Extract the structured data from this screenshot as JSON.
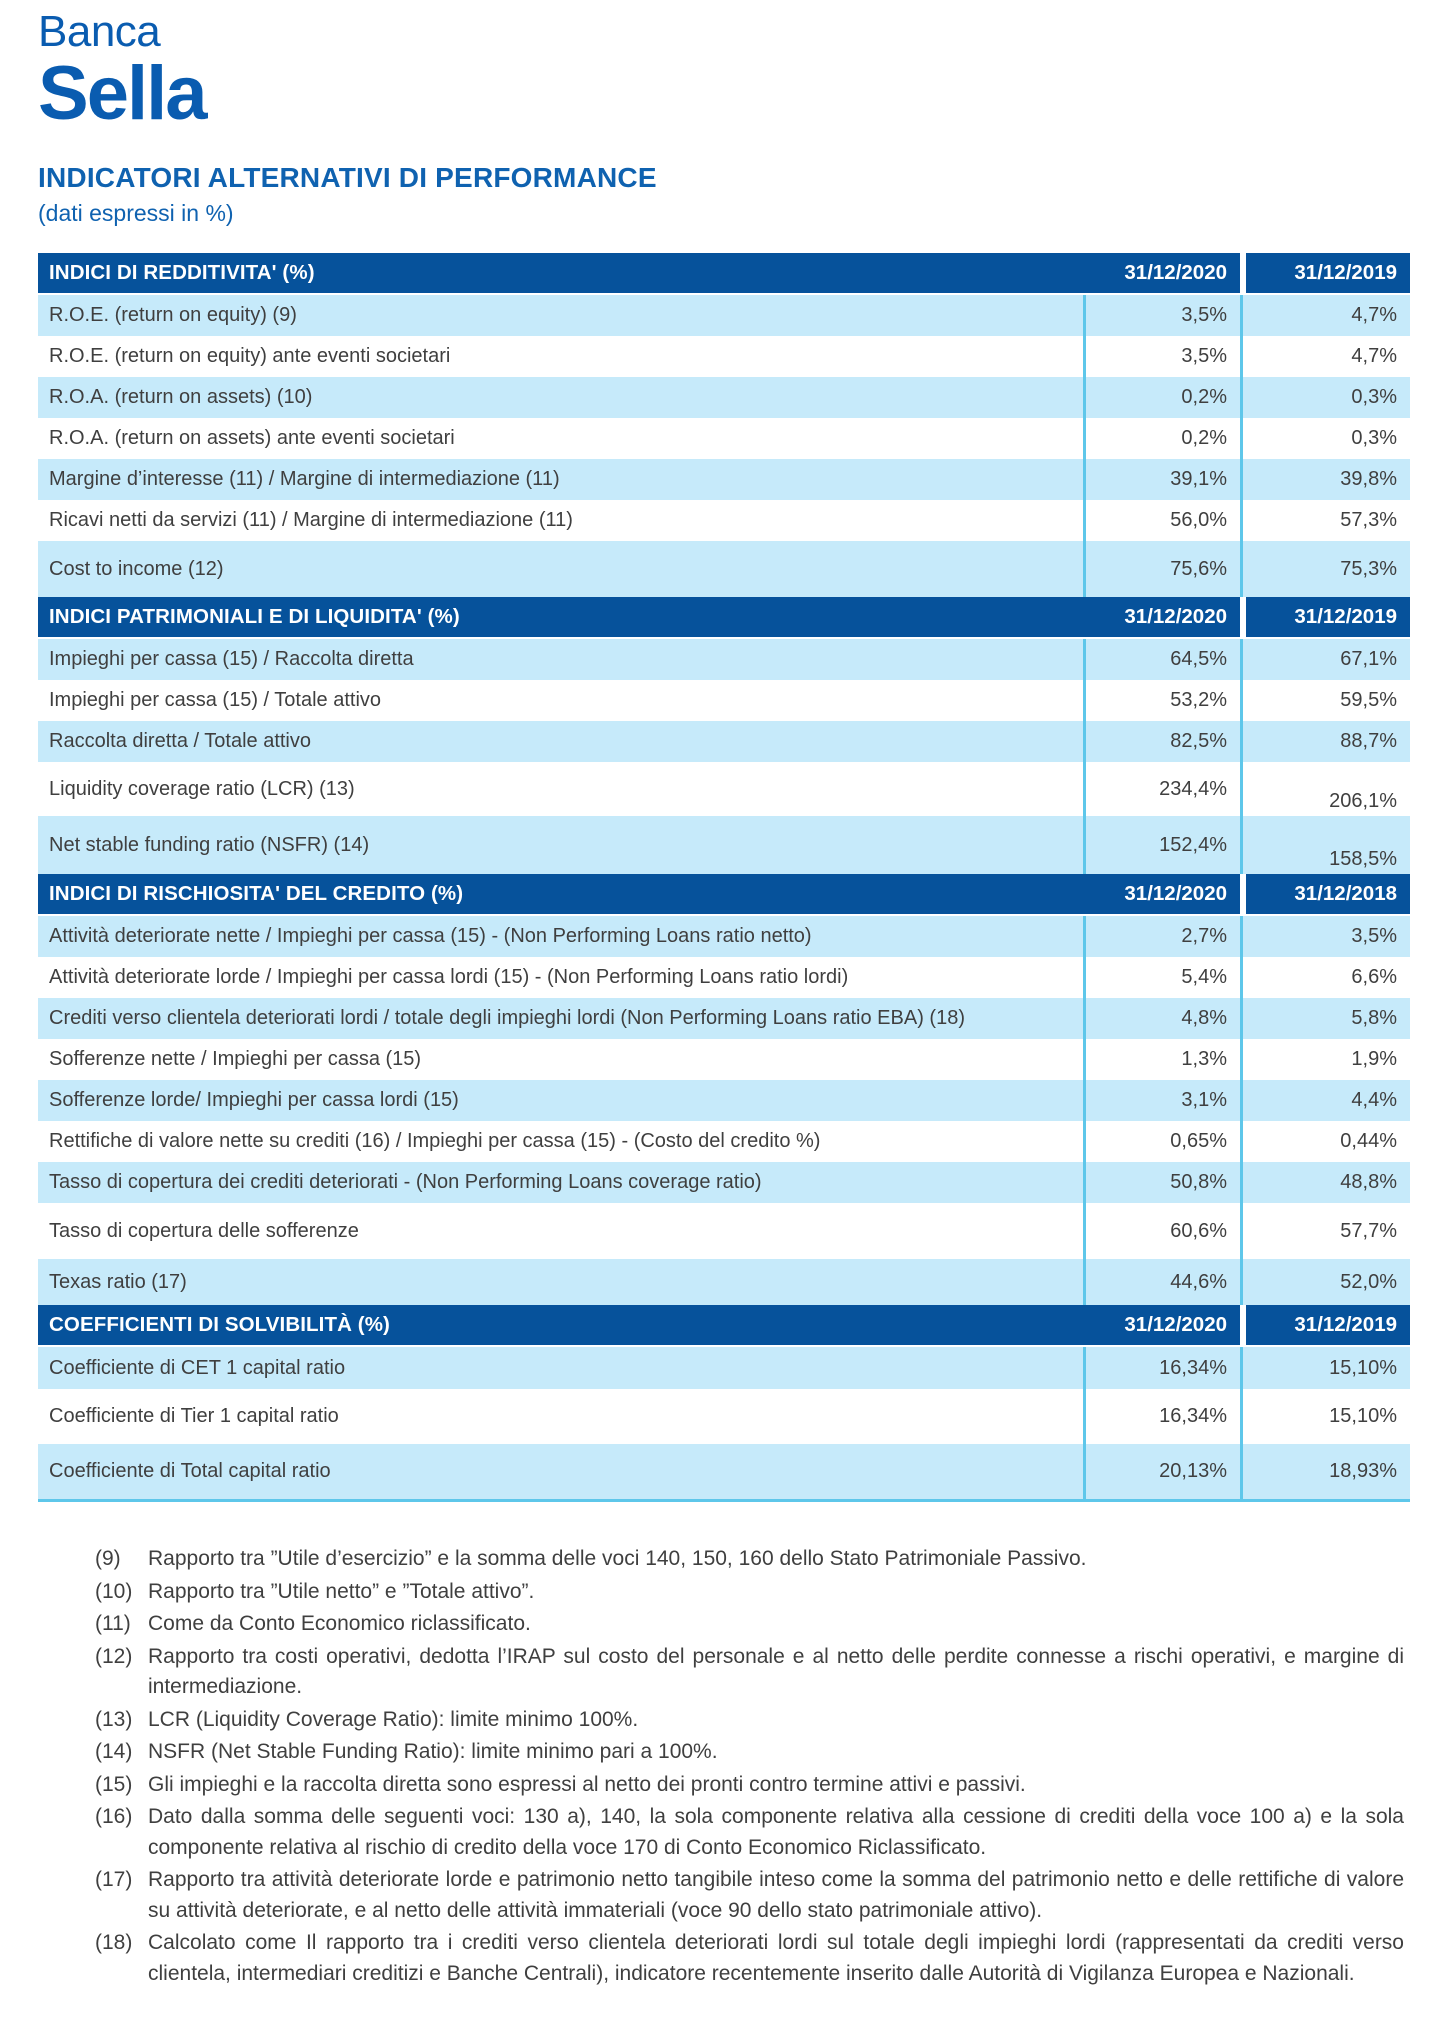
{
  "logo": {
    "line1": "Banca",
    "line2": "Sella"
  },
  "title": "INDICATORI ALTERNATIVI DI PERFORMANCE",
  "subtitle": "(dati espressi in %)",
  "colors": {
    "header_blue": "#06529b",
    "row_light_blue": "#c6eafa",
    "divider_cyan": "#5ec7ea",
    "brand_blue": "#0a5cb0",
    "title_blue": "#0f62b0",
    "body_text": "#3f3f3f"
  },
  "tables": [
    {
      "header": "INDICI DI REDDITIVITA' (%)",
      "col1": "31/12/2020",
      "col2": "31/12/2019",
      "rows": [
        {
          "label": "R.O.E. (return on equity) (9)",
          "v1": "3,5%",
          "v2": "4,7%"
        },
        {
          "label": "R.O.E. (return on equity) ante eventi societari",
          "v1": "3,5%",
          "v2": "4,7%"
        },
        {
          "label": "R.O.A. (return on assets) (10)",
          "v1": "0,2%",
          "v2": "0,3%"
        },
        {
          "label": "R.O.A. (return on assets) ante eventi societari",
          "v1": "0,2%",
          "v2": "0,3%"
        },
        {
          "label": "Margine d’interesse (11) / Margine di intermediazione (11)",
          "v1": "39,1%",
          "v2": "39,8%"
        },
        {
          "label": "Ricavi netti da servizi (11) / Margine di intermediazione (11)",
          "v1": "56,0%",
          "v2": "57,3%"
        },
        {
          "label": "Cost to income (12)",
          "v1": "75,6%",
          "v2": "75,3%"
        }
      ]
    },
    {
      "header": "INDICI PATRIMONIALI E DI LIQUIDITA' (%)",
      "col1": "31/12/2020",
      "col2": "31/12/2019",
      "rows": [
        {
          "label": "Impieghi per cassa (15) / Raccolta diretta",
          "v1": "64,5%",
          "v2": "67,1%"
        },
        {
          "label": "Impieghi per cassa (15) / Totale attivo",
          "v1": "53,2%",
          "v2": "59,5%"
        },
        {
          "label": "Raccolta diretta / Totale attivo",
          "v1": "82,5%",
          "v2": "88,7%"
        },
        {
          "label": "Liquidity coverage ratio (LCR) (13)",
          "v1": "234,4%",
          "v2": "206,1%"
        },
        {
          "label": "Net stable funding ratio (NSFR) (14)",
          "v1": "152,4%",
          "v2": "158,5%"
        }
      ]
    },
    {
      "header": "INDICI DI RISCHIOSITA' DEL CREDITO (%)",
      "col1": "31/12/2020",
      "col2": "31/12/2018",
      "rows": [
        {
          "label": "Attività deteriorate nette / Impieghi per cassa (15) - (Non Performing Loans ratio netto)",
          "v1": "2,7%",
          "v2": "3,5%"
        },
        {
          "label": "Attività deteriorate lorde / Impieghi per cassa lordi (15) - (Non Performing Loans ratio lordi)",
          "v1": "5,4%",
          "v2": "6,6%"
        },
        {
          "label": "Crediti verso clientela deteriorati lordi / totale degli impieghi lordi (Non Performing Loans ratio EBA) (18)",
          "v1": "4,8%",
          "v2": "5,8%"
        },
        {
          "label": "Sofferenze nette / Impieghi per cassa (15)",
          "v1": "1,3%",
          "v2": "1,9%"
        },
        {
          "label": "Sofferenze lorde/ Impieghi per cassa lordi (15)",
          "v1": "3,1%",
          "v2": "4,4%"
        },
        {
          "label": "Rettifiche di valore nette su crediti (16) / Impieghi per cassa (15) - (Costo del credito %)",
          "v1": "0,65%",
          "v2": "0,44%"
        },
        {
          "label": "Tasso di copertura dei crediti deteriorati - (Non Performing Loans coverage ratio)",
          "v1": "50,8%",
          "v2": "48,8%"
        },
        {
          "label": "Tasso di copertura delle sofferenze",
          "v1": "60,6%",
          "v2": "57,7%"
        },
        {
          "label": "Texas ratio (17)",
          "v1": "44,6%",
          "v2": "52,0%"
        }
      ]
    },
    {
      "header": "COEFFICIENTI DI SOLVIBILITÀ (%)",
      "col1": "31/12/2020",
      "col2": "31/12/2019",
      "rows": [
        {
          "label": "Coefficiente di CET 1 capital ratio",
          "v1": "16,34%",
          "v2": "15,10%"
        },
        {
          "label": "Coefficiente di Tier 1 capital ratio",
          "v1": "16,34%",
          "v2": "15,10%"
        },
        {
          "label": "Coefficiente di Total capital ratio",
          "v1": "20,13%",
          "v2": "18,93%"
        }
      ]
    }
  ],
  "footnotes": [
    {
      "num": "(9)",
      "text": "Rapporto tra ”Utile d’esercizio” e la somma delle voci 140, 150, 160 dello Stato Patrimoniale Passivo."
    },
    {
      "num": "(10)",
      "text": "Rapporto tra ”Utile netto” e ”Totale attivo”."
    },
    {
      "num": "(11)",
      "text": "Come da Conto Economico riclassificato."
    },
    {
      "num": "(12)",
      "text": "Rapporto tra costi operativi, dedotta l’IRAP sul costo del personale e al netto delle perdite connesse a rischi operativi, e margine di intermediazione."
    },
    {
      "num": "(13)",
      "text": "LCR (Liquidity Coverage Ratio): limite minimo 100%."
    },
    {
      "num": "(14)",
      "text": "NSFR (Net Stable Funding Ratio): limite minimo pari a 100%."
    },
    {
      "num": "(15)",
      "text": "Gli impieghi e la raccolta diretta sono espressi al netto dei pronti contro termine attivi e passivi."
    },
    {
      "num": "(16)",
      "text": "Dato dalla somma delle seguenti voci: 130 a), 140, la sola componente relativa alla cessione di crediti della voce 100 a) e la sola componente relativa al rischio di credito della voce 170 di Conto Economico Riclassificato."
    },
    {
      "num": "(17)",
      "text": "Rapporto tra attività deteriorate lorde e patrimonio netto tangibile inteso come la somma del patrimonio netto e delle rettifiche di valore su attività deteriorate, e al netto delle attività immateriali (voce 90 dello stato patrimoniale attivo)."
    },
    {
      "num": "(18)",
      "text": "Calcolato come Il rapporto tra i crediti verso clientela deteriorati lordi sul totale degli impieghi lordi (rappresentati da crediti verso clientela, intermediari creditizi e Banche Centrali), indicatore recentemente inserito dalle Autorità di Vigilanza Europea e Nazionali."
    }
  ]
}
